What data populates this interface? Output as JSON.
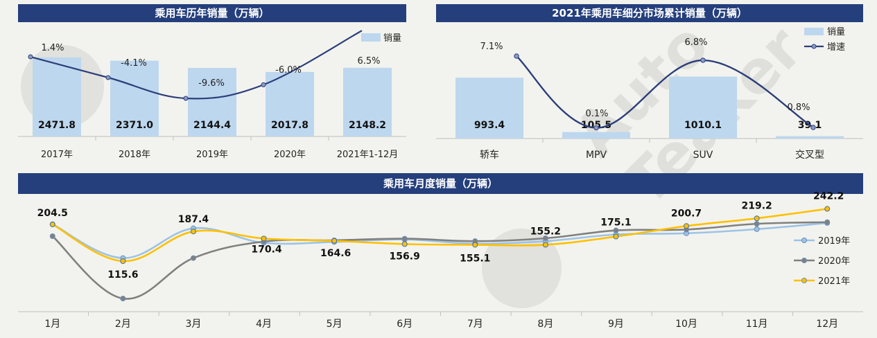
{
  "watermark": {
    "text": "Auto Teaker"
  },
  "chart_data": [
    {
      "type": "bar",
      "title": "乘用车历年销量（万辆）",
      "categories": [
        "2017年",
        "2018年",
        "2019年",
        "2020年",
        "2021年1-12月"
      ],
      "series": [
        {
          "name": "销量",
          "type": "bar",
          "values": [
            2471.8,
            2371.0,
            2144.4,
            2017.8,
            2148.2
          ],
          "labels": [
            "2471.8",
            "2371.0",
            "2144.4",
            "2017.8",
            "2148.2"
          ]
        },
        {
          "name": "",
          "type": "line",
          "values": [
            1.4,
            -4.1,
            -9.6,
            -6.0,
            6.5
          ],
          "labels": [
            "1.4%",
            "-4.1%",
            "-9.6%",
            "-6.0%",
            "6.5%"
          ]
        }
      ],
      "legend": [
        "销量"
      ],
      "legend_position": "top-right",
      "colors": {
        "bar": "#bdd7ee",
        "line": "#2c3e7a"
      }
    },
    {
      "type": "bar",
      "title": "2021年乘用车细分市场累计销量（万辆）",
      "categories": [
        "轿车",
        "MPV",
        "SUV",
        "交叉型"
      ],
      "series": [
        {
          "name": "销量",
          "type": "bar",
          "values": [
            993.4,
            105.5,
            1010.1,
            39.1
          ],
          "labels": [
            "993.4",
            "105.5",
            "1010.1",
            "39.1"
          ]
        },
        {
          "name": "增速",
          "type": "line",
          "values": [
            7.1,
            0.1,
            6.8,
            0.8
          ],
          "labels": [
            "7.1%",
            "0.1%",
            "6.8%",
            "0.8%"
          ]
        }
      ],
      "legend": [
        "销量",
        "增速"
      ],
      "legend_position": "top-right",
      "colors": {
        "bar": "#bdd7ee",
        "line": "#2c3e7a"
      }
    },
    {
      "type": "line",
      "title": "乘用车月度销量（万辆）",
      "categories": [
        "1月",
        "2月",
        "3月",
        "4月",
        "5月",
        "6月",
        "7月",
        "8月",
        "9月",
        "10月",
        "11月",
        "12月"
      ],
      "series": [
        {
          "name": "2019年",
          "values": [
            205,
            123,
            195,
            160,
            162,
            168,
            158,
            164,
            180,
            183,
            193,
            208
          ],
          "color": "#9dc3e6"
        },
        {
          "name": "2020年",
          "values": [
            176,
            25,
            123,
            163,
            166,
            170,
            164,
            171,
            190,
            192,
            206,
            210
          ],
          "color": "#808080"
        },
        {
          "name": "2021年",
          "values": [
            204.5,
            115.6,
            187.4,
            170.4,
            164.6,
            156.9,
            155.1,
            155.2,
            175.1,
            200.7,
            219.2,
            242.2
          ],
          "labels": [
            "204.5",
            "115.6",
            "187.4",
            "170.4",
            "164.6",
            "156.9",
            "155.1",
            "155.2",
            "175.1",
            "200.7",
            "219.2",
            "242.2"
          ],
          "color": "#ffc000"
        }
      ],
      "legend_position": "right"
    }
  ]
}
